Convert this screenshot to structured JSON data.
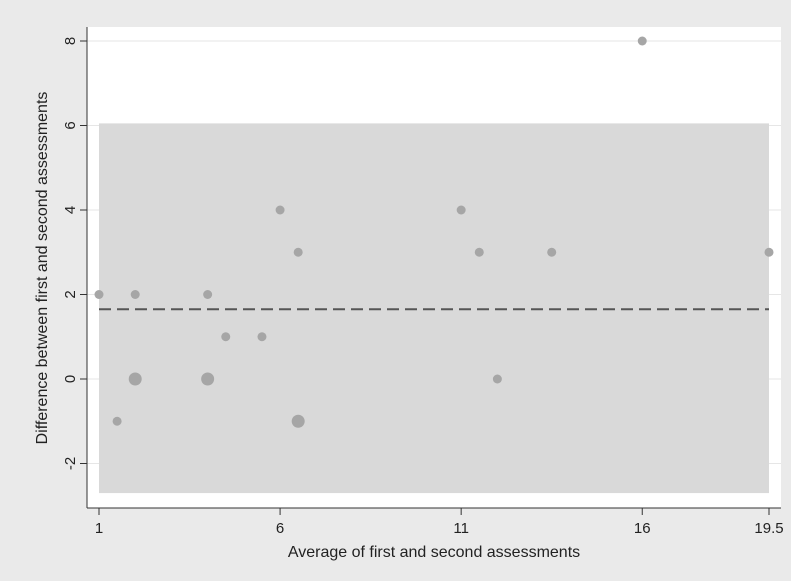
{
  "chart_data": {
    "type": "scatter",
    "title": "",
    "xlabel": "Average of first and second assessments",
    "ylabel": "Difference between first and second assessments",
    "xlim": [
      1,
      19.5
    ],
    "ylim": [
      -3,
      8.3
    ],
    "x_ticks": [
      {
        "value": 1,
        "label": "1"
      },
      {
        "value": 6,
        "label": "6"
      },
      {
        "value": 11,
        "label": "11"
      },
      {
        "value": 16,
        "label": "16"
      },
      {
        "value": 19.5,
        "label": "19.5"
      }
    ],
    "y_ticks": [
      {
        "value": -2,
        "label": "-2"
      },
      {
        "value": 0,
        "label": "0"
      },
      {
        "value": 2,
        "label": "2"
      },
      {
        "value": 4,
        "label": "4"
      },
      {
        "value": 6,
        "label": "6"
      },
      {
        "value": 8,
        "label": "8"
      }
    ],
    "mean_difference": 1.65,
    "limits_of_agreement": [
      -2.7,
      6.05
    ],
    "grid": true,
    "colors": {
      "background": "#eaeaea",
      "plot_area": "#ffffff",
      "band": "#d9d9d9",
      "points": "#a6a6a6",
      "mean_line": "#555555"
    },
    "points": [
      {
        "x": 1.0,
        "y": 2,
        "n": 1
      },
      {
        "x": 1.5,
        "y": -1,
        "n": 1
      },
      {
        "x": 2.0,
        "y": 2,
        "n": 1
      },
      {
        "x": 2.0,
        "y": 0,
        "n": 2
      },
      {
        "x": 4.0,
        "y": 2,
        "n": 1
      },
      {
        "x": 4.0,
        "y": 0,
        "n": 2
      },
      {
        "x": 4.5,
        "y": 1,
        "n": 1
      },
      {
        "x": 5.5,
        "y": 1,
        "n": 1
      },
      {
        "x": 6.0,
        "y": 4,
        "n": 1
      },
      {
        "x": 6.5,
        "y": 3,
        "n": 1
      },
      {
        "x": 6.5,
        "y": -1,
        "n": 2
      },
      {
        "x": 11.0,
        "y": 4,
        "n": 1
      },
      {
        "x": 11.5,
        "y": 3,
        "n": 1
      },
      {
        "x": 12.0,
        "y": 0,
        "n": 1
      },
      {
        "x": 13.5,
        "y": 3,
        "n": 1
      },
      {
        "x": 16.0,
        "y": 8,
        "n": 1
      },
      {
        "x": 19.5,
        "y": 3,
        "n": 1
      }
    ]
  }
}
